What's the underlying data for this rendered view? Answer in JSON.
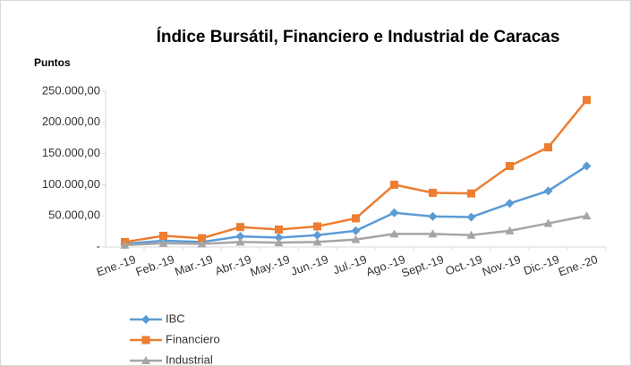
{
  "chart_data": {
    "type": "line",
    "title": "Índice Bursátil, Financiero e Industrial de Caracas",
    "y_label": "Puntos",
    "categories": [
      "Ene.-19",
      "Feb.-19",
      "Mar.-19",
      "Abr.-19",
      "May.-19",
      "Jun.-19",
      "Jul.-19",
      "Ago.-19",
      "Sept.-19",
      "Oct.-19",
      "Nov.-19",
      "Dic.-19",
      "Ene.-20"
    ],
    "series": [
      {
        "name": "IBC",
        "color": "#5b9bd5",
        "marker": "diamond",
        "values": [
          5000,
          10000,
          8000,
          17000,
          15000,
          19000,
          26000,
          55000,
          49000,
          48000,
          70000,
          90000,
          130000
        ]
      },
      {
        "name": "Financiero",
        "color": "#ed7d31",
        "marker": "square",
        "values": [
          8000,
          18000,
          14000,
          32000,
          28000,
          33000,
          46000,
          100000,
          87000,
          86000,
          130000,
          160000,
          236000
        ]
      },
      {
        "name": "Industrial",
        "color": "#a5a5a5",
        "marker": "triangle",
        "values": [
          3000,
          6000,
          5000,
          8000,
          7000,
          8000,
          12000,
          21000,
          21000,
          19000,
          26000,
          38000,
          50000
        ]
      }
    ],
    "ylim": [
      0,
      250000
    ],
    "yticks": [
      {
        "value": 0,
        "label": "-"
      },
      {
        "value": 50000,
        "label": "50.000,00"
      },
      {
        "value": 100000,
        "label": "100.000,00"
      },
      {
        "value": 150000,
        "label": "150.000,00"
      },
      {
        "value": 200000,
        "label": "200.000,00"
      },
      {
        "value": 250000,
        "label": "250.000,00"
      }
    ],
    "grid": false,
    "legend": "bottom-left"
  }
}
